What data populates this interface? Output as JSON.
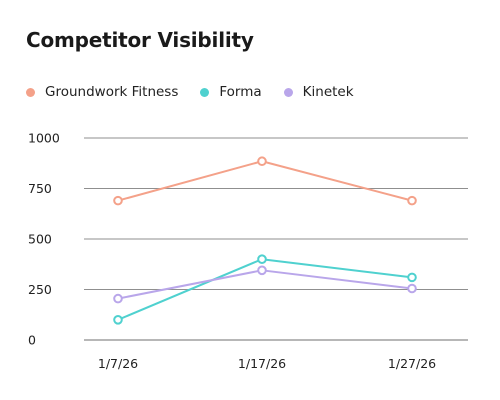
{
  "chart_data": {
    "type": "line",
    "title": "Competitor Visibility",
    "xlabel": "",
    "ylabel": "",
    "categories": [
      "1/7/26",
      "1/17/26",
      "1/27/26"
    ],
    "ylim": [
      0,
      1000
    ],
    "yticks": [
      0,
      250,
      500,
      750,
      1000
    ],
    "grid": true,
    "legend_position": "top-left",
    "series": [
      {
        "name": "Groundwork Fitness",
        "color": "#f4a189",
        "values": [
          690,
          885,
          690
        ]
      },
      {
        "name": "Forma",
        "color": "#4fd1cf",
        "values": [
          100,
          400,
          310
        ]
      },
      {
        "name": "Kinetek",
        "color": "#b9a6ea",
        "values": [
          205,
          345,
          255
        ]
      }
    ]
  }
}
